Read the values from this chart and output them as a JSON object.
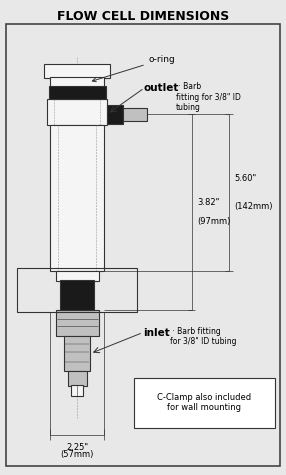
{
  "title": "FLOW CELL DIMENSIONS",
  "title_fontsize": 9,
  "title_fontweight": "bold",
  "bg_color": "#e8e8e8",
  "inner_bg": "#e8e8e8",
  "border_color": "#444444",
  "draw_color": "#333333",
  "dark_fill": "#1a1a1a",
  "light_fill": "#f5f5f5",
  "gray_fill": "#c0c0c0",
  "dashed_color": "#999999",
  "annotations": {
    "o_ring": "o-ring",
    "outlet_bold": "outlet",
    "outlet_small": " · Barb\nfitting for 3/8\" ID\ntubing",
    "inlet_bold": "inlet",
    "inlet_small": " · Barb fitting\nfor 3/8\" ID tubing",
    "dim_560_a": "5.60\"",
    "dim_560_b": "(142mm)",
    "dim_382_a": "3.82\"",
    "dim_382_b": "(97mm)",
    "dim_225_a": "2.25\"",
    "dim_225_b": "(57mm)",
    "cclamp": "C-Clamp also included\nfor wall mounting"
  }
}
